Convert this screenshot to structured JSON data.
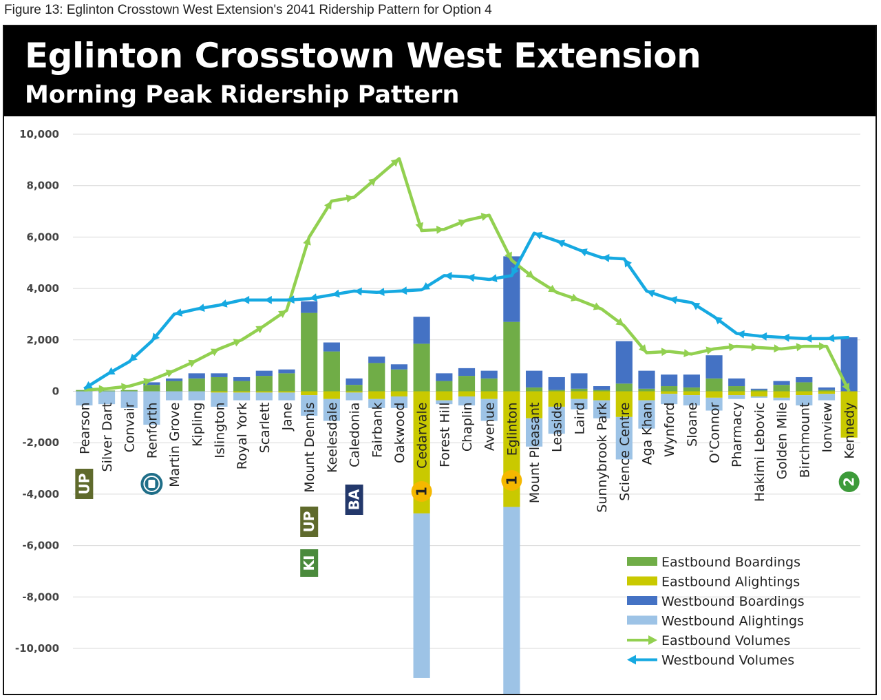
{
  "figure_caption": "Figure 13: Eglinton Crosstown West Extension's 2041 Ridership Pattern for Option 4",
  "colors": {
    "eastbound_boardings": "#70ad47",
    "eastbound_alightings": "#c9c900",
    "westbound_boardings": "#4472c4",
    "westbound_alightings": "#9dc3e6",
    "eastbound_volumes": "#92d050",
    "westbound_volumes": "#16a9e1",
    "up_badge": "#5f6a2c",
    "kitchener_badge": "#4a8a3c",
    "barrie_badge": "#23386b",
    "line1_badge": "#f5b800",
    "line2_badge": "#3d9b3a",
    "ttc_badge": "#1f6e88"
  },
  "chart_data": {
    "type": "bar",
    "title": "Eglinton Crosstown West Extension",
    "subtitle": "Morning Peak Ridership Pattern",
    "xlabel": "",
    "ylabel": "",
    "ylim": [
      -10000,
      10000
    ],
    "yticks": [
      10000,
      8000,
      6000,
      4000,
      2000,
      0,
      -2000,
      -4000,
      -6000,
      -8000,
      -10000
    ],
    "ytick_labels": [
      "10,000",
      "8,000",
      "6,000",
      "4,000",
      "2,000",
      "0",
      "-2,000",
      "-4,000",
      "-6,000",
      "-8,000",
      "-10,000"
    ],
    "grid": true,
    "legend_position": "bottom-right",
    "categories": [
      "Pearson",
      "Silver Dart",
      "Convair",
      "Renforth",
      "Martin Grove",
      "Kipling",
      "Islington",
      "Royal York",
      "Scarlett",
      "Jane",
      "Mount Dennis",
      "Keelesdale",
      "Caledonia",
      "Fairbank",
      "Oakwood",
      "Cedarvale",
      "Forest Hill",
      "Chaplin",
      "Avenue",
      "Eglinton",
      "Mount Pleasant",
      "Leaside",
      "Laird",
      "Sunnybrook Park",
      "Science Centre",
      "Aga Khan",
      "Wynford",
      "Sloane",
      "O'Connor",
      "Pharmacy",
      "Hakimi Lebovic",
      "Golden Mile",
      "Birchmount",
      "Ionview",
      "Kennedy"
    ],
    "series": [
      {
        "name": "Eastbound Boardings",
        "kind": "bar",
        "values": [
          50,
          30,
          50,
          250,
          400,
          500,
          550,
          400,
          600,
          700,
          3050,
          1550,
          250,
          1100,
          850,
          1850,
          400,
          600,
          500,
          2700,
          150,
          50,
          100,
          50,
          300,
          100,
          200,
          150,
          500,
          200,
          50,
          250,
          350,
          50,
          0
        ]
      },
      {
        "name": "Eastbound Alightings",
        "kind": "bar",
        "values": [
          0,
          0,
          0,
          0,
          0,
          0,
          -50,
          -50,
          -50,
          -50,
          -150,
          -300,
          -50,
          -300,
          -200,
          -4750,
          -350,
          -200,
          -300,
          -4500,
          -1050,
          -600,
          -300,
          -350,
          -1000,
          -350,
          -100,
          -150,
          -250,
          -150,
          -200,
          -250,
          -150,
          -100,
          -1800
        ]
      },
      {
        "name": "Westbound Boardings",
        "kind": "bar",
        "values": [
          0,
          0,
          0,
          100,
          100,
          200,
          150,
          150,
          200,
          150,
          450,
          350,
          250,
          250,
          200,
          1050,
          300,
          300,
          300,
          2550,
          650,
          500,
          600,
          150,
          1650,
          700,
          450,
          500,
          900,
          300,
          50,
          150,
          200,
          100,
          2100
        ]
      },
      {
        "name": "Westbound Alightings",
        "kind": "bar",
        "values": [
          -550,
          -500,
          -650,
          -1300,
          -350,
          -350,
          -550,
          -300,
          -300,
          -300,
          -800,
          -850,
          -300,
          -350,
          -450,
          -6400,
          -150,
          -350,
          -850,
          -8800,
          -1100,
          -1050,
          -400,
          -700,
          -1650,
          -1100,
          -400,
          -400,
          -500,
          -150,
          -50,
          -100,
          -400,
          -250,
          0
        ]
      },
      {
        "name": "Eastbound Volumes",
        "kind": "line",
        "values": [
          50,
          100,
          200,
          450,
          800,
          1200,
          1650,
          2000,
          2550,
          3150,
          6000,
          7400,
          7550,
          8300,
          9050,
          6250,
          6300,
          6650,
          6850,
          5100,
          4400,
          3850,
          3550,
          3200,
          2550,
          1500,
          1550,
          1450,
          1650,
          1750,
          1700,
          1650,
          1750,
          1750,
          0
        ]
      },
      {
        "name": "Westbound Volumes",
        "kind": "line",
        "values": [
          100,
          650,
          1150,
          1950,
          3000,
          3200,
          3350,
          3550,
          3550,
          3550,
          3600,
          3750,
          3900,
          3850,
          3900,
          3950,
          4500,
          4450,
          4350,
          4500,
          6150,
          5850,
          5500,
          5200,
          5150,
          3900,
          3600,
          3450,
          2900,
          2250,
          2150,
          2100,
          2050,
          2050,
          2100
        ]
      }
    ],
    "legend": [
      "Eastbound Boardings",
      "Eastbound Alightings",
      "Westbound Boardings",
      "Westbound Alightings",
      "Eastbound Volumes",
      "Westbound Volumes"
    ],
    "connection_badges": [
      {
        "label": "UP",
        "station": "Pearson",
        "color_key": "up_badge"
      },
      {
        "label": "KI",
        "station": "Mount Dennis",
        "color_key": "kitchener_badge"
      },
      {
        "label": "UP",
        "station": "Mount Dennis",
        "color_key": "up_badge"
      },
      {
        "label": "BA",
        "station": "Caledonia",
        "color_key": "barrie_badge"
      },
      {
        "label": "1",
        "station": "Cedarvale",
        "color_key": "line1_badge"
      },
      {
        "label": "1",
        "station": "Eglinton",
        "color_key": "line1_badge"
      },
      {
        "label": "2",
        "station": "Kennedy",
        "color_key": "line2_badge"
      }
    ]
  }
}
